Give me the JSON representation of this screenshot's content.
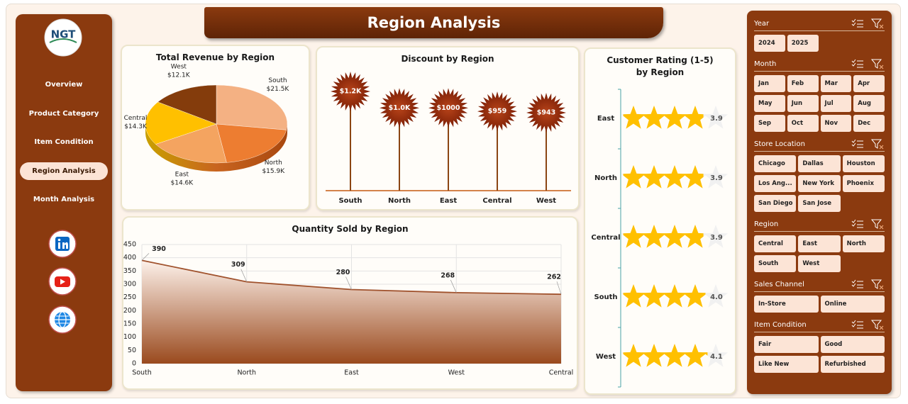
{
  "header": {
    "title": "Region Analysis"
  },
  "sidebar": {
    "logo": "NGT",
    "nav": [
      "Overview",
      "Product Category",
      "Item Condition",
      "Region Analysis",
      "Month Analysis"
    ],
    "active": 3
  },
  "chart_data": [
    {
      "type": "pie",
      "title": "Total Revenue by Region",
      "categories": [
        "South",
        "North",
        "East",
        "Central",
        "West"
      ],
      "values": [
        21500,
        15900,
        14600,
        14300,
        12100
      ],
      "value_labels": [
        "$21.5K",
        "$15.9K",
        "$14.6K",
        "$14.3K",
        "$12.1K"
      ],
      "colors": [
        "#f4b183",
        "#ed7d31",
        "#f4a460",
        "#ffc000",
        "#843c0c"
      ]
    },
    {
      "type": "lollipop",
      "title": "Discount by Region",
      "categories": [
        "South",
        "North",
        "East",
        "Central",
        "West"
      ],
      "values": [
        1200,
        1000,
        1000,
        959,
        943
      ],
      "value_labels": [
        "$1.2K",
        "$1.0K",
        "$1000",
        "$959",
        "$943"
      ],
      "color": "#7b1e05"
    },
    {
      "type": "area",
      "title": "Quantity Sold by Region",
      "categories": [
        "South",
        "North",
        "East",
        "West",
        "Central"
      ],
      "values": [
        390,
        309,
        280,
        268,
        262
      ],
      "ylim": [
        0,
        450
      ],
      "yticks": [
        0,
        50,
        100,
        150,
        200,
        250,
        300,
        350,
        400,
        450
      ],
      "grid": true,
      "color": "#a0522d"
    },
    {
      "type": "rating",
      "title": "Customer Rating (1-5) by Region",
      "categories": [
        "East",
        "North",
        "Central",
        "South",
        "West"
      ],
      "values": [
        3.9,
        3.9,
        3.9,
        4.0,
        4.1
      ],
      "value_labels": [
        "3.9",
        "3.9",
        "3.9",
        "4.0",
        "4.1"
      ],
      "xlim": [
        0,
        5
      ],
      "color": "#ffc000"
    }
  ],
  "slicers": [
    {
      "title": "Year",
      "items": [
        "2024",
        "2025"
      ]
    },
    {
      "title": "Month",
      "items": [
        "Jan",
        "Feb",
        "Mar",
        "Apr",
        "May",
        "Jun",
        "Jul",
        "Aug",
        "Sep",
        "Oct",
        "Nov",
        "Dec"
      ]
    },
    {
      "title": "Store Location",
      "items": [
        "Chicago",
        "Dallas",
        "Houston",
        "Los Ang...",
        "New York",
        "Phoenix",
        "San Diego",
        "San Jose"
      ]
    },
    {
      "title": "Region",
      "items": [
        "Central",
        "East",
        "North",
        "South",
        "West"
      ]
    },
    {
      "title": "Sales Channel",
      "items": [
        "In-Store",
        "Online"
      ]
    },
    {
      "title": "Item Condition",
      "items": [
        "Fair",
        "Good",
        "Like New",
        "Refurbished"
      ]
    }
  ]
}
